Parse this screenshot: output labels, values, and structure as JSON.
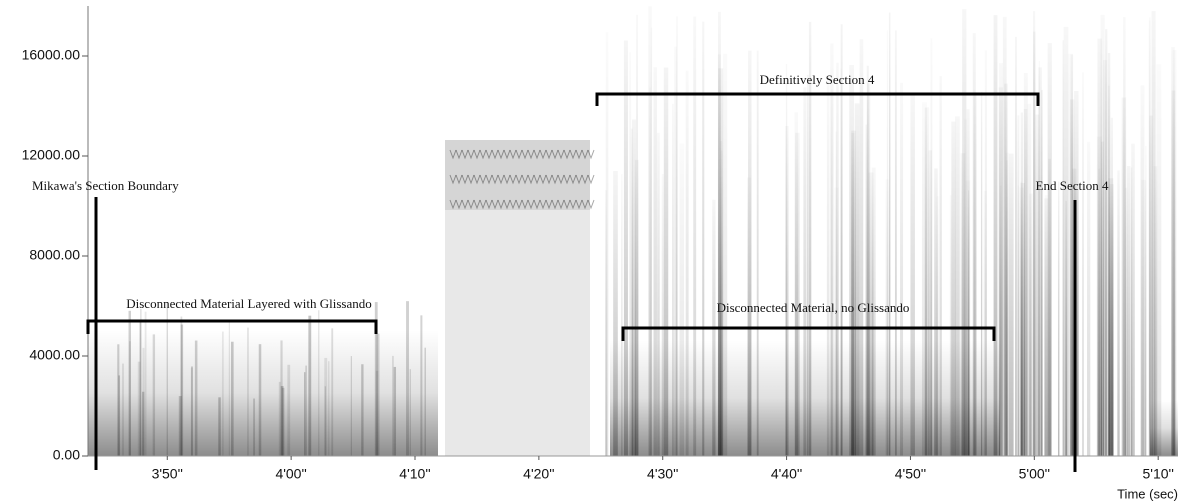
{
  "chart_data": {
    "type": "spectrogram",
    "xlabel": "Time (sec)",
    "xlim": [
      223.6,
      311.6
    ],
    "xticks": [
      {
        "value": 230,
        "label": "3'50''"
      },
      {
        "value": 240,
        "label": "4'00''"
      },
      {
        "value": 250,
        "label": "4'10''"
      },
      {
        "value": 260,
        "label": "4'20''"
      },
      {
        "value": 270,
        "label": "4'30''"
      },
      {
        "value": 280,
        "label": "4'40''"
      },
      {
        "value": 290,
        "label": "4'50''"
      },
      {
        "value": 300,
        "label": "5'00''"
      },
      {
        "value": 310,
        "label": "5'10''"
      }
    ],
    "ylim": [
      0,
      18000
    ],
    "yticks": [
      {
        "value": 0,
        "label": "0.00"
      },
      {
        "value": 4000,
        "label": "4000.00"
      },
      {
        "value": 8000,
        "label": "8000.00"
      },
      {
        "value": 12000,
        "label": "12000.00"
      },
      {
        "value": 16000,
        "label": "16000.00"
      }
    ],
    "annotations": [
      "Mikawa's Section Boundary",
      "Definitively Section 4",
      "End Section 4",
      "Disconnected Material Layered with Glissando",
      "Disconnected Material, no Glissando"
    ]
  }
}
